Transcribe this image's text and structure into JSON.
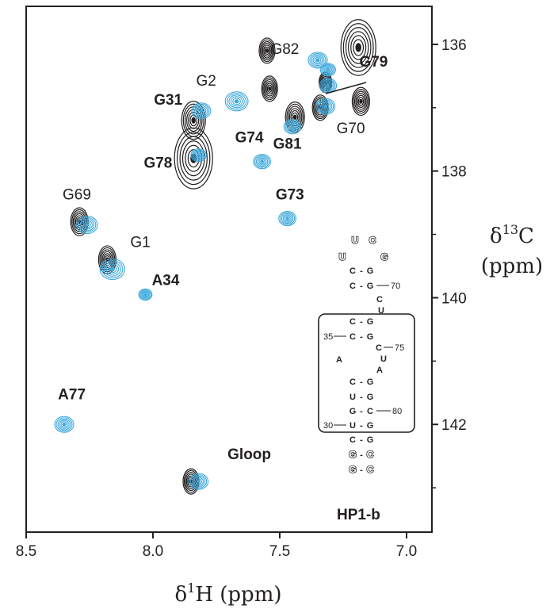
{
  "chart_data": {
    "type": "scatter",
    "title": "",
    "xlabel": "δ¹H (ppm)",
    "xlabel_parts": {
      "prefix": "δ",
      "sup": "1",
      "suffix": "H (ppm)"
    },
    "ylabel_parts": {
      "prefix": "δ",
      "sup": "13",
      "suffix": "C",
      "unit": "(ppm)"
    },
    "x_axis": {
      "label": "δ¹H (ppm)",
      "range": [
        8.5,
        6.9
      ],
      "reversed": true,
      "ticks": [
        8.5,
        8.0,
        7.5,
        7.0
      ],
      "tick_labels": [
        "8.5",
        "8.0",
        "7.5",
        "7.0"
      ]
    },
    "y_axis": {
      "label": "δ¹³C (ppm)",
      "range": [
        135.4,
        143.7
      ],
      "reversed": true,
      "position": "right",
      "ticks": [
        136,
        138,
        140,
        142
      ],
      "tick_labels": [
        "136",
        "138",
        "140",
        "142"
      ]
    },
    "grid": false,
    "colors": {
      "reference_spectrum": "#231f20",
      "overlay_spectrum": "#3fa9dc",
      "axes": "#231f20"
    },
    "series": [
      {
        "name": "",
        "color": "#231f20",
        "points": [
          {
            "x": 7.19,
            "y": 136.05,
            "size": 2.2
          },
          {
            "x": 7.55,
            "y": 136.1,
            "size": 1.0
          },
          {
            "x": 7.54,
            "y": 136.7,
            "size": 1.0
          },
          {
            "x": 7.18,
            "y": 136.9,
            "size": 1.1
          },
          {
            "x": 7.44,
            "y": 137.15,
            "size": 1.2
          },
          {
            "x": 7.34,
            "y": 137.0,
            "size": 1.0
          },
          {
            "x": 7.32,
            "y": 136.6,
            "size": 0.8
          },
          {
            "x": 7.84,
            "y": 137.2,
            "size": 1.5
          },
          {
            "x": 7.84,
            "y": 137.8,
            "size": 2.4
          },
          {
            "x": 8.29,
            "y": 138.8,
            "size": 1.1
          },
          {
            "x": 8.18,
            "y": 139.4,
            "size": 1.1
          },
          {
            "x": 7.85,
            "y": 142.9,
            "size": 1.0
          }
        ]
      },
      {
        "name": "",
        "color": "#3fa9dc",
        "points": [
          {
            "x": 7.35,
            "y": 136.25,
            "size": 1.0
          },
          {
            "x": 7.31,
            "y": 136.4,
            "size": 0.8
          },
          {
            "x": 7.31,
            "y": 136.65,
            "size": 0.9
          },
          {
            "x": 7.67,
            "y": 136.9,
            "size": 1.2
          },
          {
            "x": 7.81,
            "y": 137.05,
            "size": 1.0
          },
          {
            "x": 7.32,
            "y": 136.98,
            "size": 1.0
          },
          {
            "x": 7.45,
            "y": 137.3,
            "size": 0.9
          },
          {
            "x": 7.57,
            "y": 137.85,
            "size": 0.9
          },
          {
            "x": 7.82,
            "y": 137.75,
            "size": 0.8
          },
          {
            "x": 7.47,
            "y": 138.75,
            "size": 0.9
          },
          {
            "x": 8.26,
            "y": 138.85,
            "size": 1.1
          },
          {
            "x": 8.16,
            "y": 139.55,
            "size": 1.3
          },
          {
            "x": 8.03,
            "y": 139.95,
            "size": 0.7
          },
          {
            "x": 8.35,
            "y": 142.0,
            "size": 1.0
          },
          {
            "x": 7.82,
            "y": 142.9,
            "size": 1.0
          }
        ]
      }
    ],
    "annotations": [
      {
        "text": "G82",
        "x": 7.48,
        "y": 136.15,
        "bold": false
      },
      {
        "text": "G79",
        "x": 7.13,
        "y": 136.35,
        "bold": true
      },
      {
        "text": "G2",
        "x": 7.79,
        "y": 136.65,
        "bold": false
      },
      {
        "text": "G31",
        "x": 7.94,
        "y": 136.95,
        "bold": true
      },
      {
        "text": "G70",
        "x": 7.22,
        "y": 137.4,
        "bold": false
      },
      {
        "text": "G74",
        "x": 7.62,
        "y": 137.55,
        "bold": true
      },
      {
        "text": "G81",
        "x": 7.47,
        "y": 137.65,
        "bold": true
      },
      {
        "text": "G78",
        "x": 7.98,
        "y": 137.95,
        "bold": true
      },
      {
        "text": "G73",
        "x": 7.46,
        "y": 138.45,
        "bold": true
      },
      {
        "text": "G69",
        "x": 8.3,
        "y": 138.45,
        "bold": false
      },
      {
        "text": "G1",
        "x": 8.05,
        "y": 139.2,
        "bold": false
      },
      {
        "text": "A34",
        "x": 7.95,
        "y": 139.8,
        "bold": true
      },
      {
        "text": "A77",
        "x": 8.32,
        "y": 141.6,
        "bold": true
      },
      {
        "text": "Gloop",
        "x": 7.62,
        "y": 142.55,
        "bold": true
      }
    ]
  },
  "inset": {
    "construct_label": "HP1-b",
    "loop": {
      "top": [
        "U",
        "C"
      ],
      "left": "U",
      "right": "G"
    },
    "pairs": [
      {
        "left": "C",
        "right": "G",
        "number": "70",
        "number_side": "right"
      },
      {
        "left": "C",
        "right": "G",
        "number": "",
        "number_side": ""
      },
      {
        "left": "C",
        "right": "G",
        "number": "35",
        "number_side": "left"
      },
      {
        "left": "C",
        "right": "G",
        "number": "",
        "number_side": ""
      },
      {
        "left": "U",
        "right": "G",
        "number": "",
        "number_side": ""
      },
      {
        "left": "G",
        "right": "C",
        "number": "80",
        "number_side": "right"
      },
      {
        "left": "U",
        "right": "G",
        "number": "30",
        "number_side": "left"
      },
      {
        "left": "C",
        "right": "G",
        "number": "",
        "number_side": ""
      },
      {
        "left": "G",
        "right": "C",
        "number": "",
        "number_side": ""
      },
      {
        "left": "G",
        "right": "C",
        "number": "",
        "number_side": ""
      }
    ],
    "bulge_right": [
      {
        "letter": "C",
        "number": ""
      },
      {
        "letter": "U",
        "number": ""
      },
      {
        "letter": "C",
        "number": "75"
      },
      {
        "letter": "U",
        "number": ""
      },
      {
        "letter": "A",
        "number": ""
      }
    ],
    "bulge_left": {
      "letter": "A"
    }
  }
}
